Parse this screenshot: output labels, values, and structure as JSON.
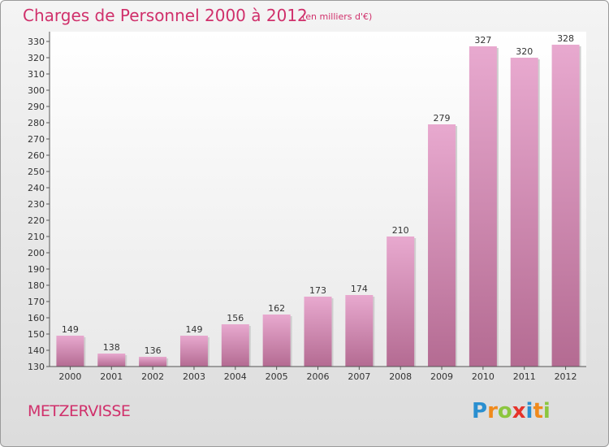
{
  "header": {
    "title": "Charges de Personnel 2000 à 2012",
    "subtitle": "(en milliers d'€)"
  },
  "footer": {
    "commune": "METZERVISSE",
    "logo": {
      "letters": [
        "P",
        "r",
        "o",
        "x",
        "i",
        "t",
        "i"
      ],
      "colors": [
        "#2a8fd0",
        "#f08a1c",
        "#8cc63f",
        "#e6332a",
        "#2a8fd0",
        "#f08a1c",
        "#8cc63f"
      ]
    }
  },
  "colors": {
    "bar_top": "#e8a9cf",
    "bar_bottom": "#b46b92",
    "title": "#d0306b"
  },
  "chart_data": {
    "type": "bar",
    "title": "Charges de Personnel 2000 à 2012",
    "subtitle": "(en milliers d'€)",
    "categories": [
      "2000",
      "2001",
      "2002",
      "2003",
      "2004",
      "2005",
      "2006",
      "2007",
      "2008",
      "2009",
      "2010",
      "2011",
      "2012"
    ],
    "values": [
      149,
      138,
      136,
      149,
      156,
      162,
      173,
      174,
      210,
      279,
      327,
      320,
      328
    ],
    "xlabel": "",
    "ylabel": "",
    "ylim": [
      130,
      330
    ],
    "ytick_step": 10,
    "grid": false
  }
}
